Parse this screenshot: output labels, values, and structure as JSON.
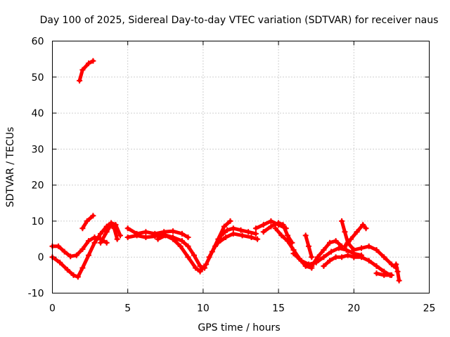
{
  "chart_data": {
    "type": "scatter",
    "title": "Day 100 of 2025, Sidereal Day-to-day VTEC variation (SDTVAR) for receiver naus",
    "xlabel": "GPS time / hours",
    "ylabel": "SDTVAR / TECUs",
    "xlim": [
      0,
      25
    ],
    "ylim": [
      -10,
      60
    ],
    "xticks": [
      0,
      5,
      10,
      15,
      20,
      25
    ],
    "yticks": [
      -10,
      0,
      10,
      20,
      30,
      40,
      50,
      60
    ],
    "grid": true,
    "legend": "none",
    "color": "#ff0000",
    "series": [
      {
        "name": "s1",
        "points": [
          [
            1.8,
            49
          ],
          [
            2.0,
            52
          ],
          [
            2.4,
            53.8
          ],
          [
            2.7,
            54.5
          ]
        ]
      },
      {
        "name": "s2",
        "points": [
          [
            0.0,
            3
          ],
          [
            0.4,
            3
          ],
          [
            0.8,
            1.5
          ],
          [
            1.2,
            0.2
          ],
          [
            1.6,
            0.5
          ],
          [
            2.0,
            2.2
          ],
          [
            2.4,
            4.5
          ],
          [
            2.8,
            5.5
          ],
          [
            3.2,
            5
          ],
          [
            3.6,
            4
          ]
        ]
      },
      {
        "name": "s3",
        "points": [
          [
            0.0,
            0
          ],
          [
            0.5,
            -1.5
          ],
          [
            1.0,
            -3.5
          ],
          [
            1.4,
            -5
          ],
          [
            1.7,
            -5.5
          ],
          [
            2.0,
            -3
          ],
          [
            2.4,
            0.5
          ],
          [
            2.8,
            4
          ],
          [
            3.2,
            6.5
          ],
          [
            3.6,
            8.5
          ],
          [
            3.9,
            9.5
          ],
          [
            4.2,
            9
          ],
          [
            4.5,
            6
          ]
        ]
      },
      {
        "name": "s4",
        "points": [
          [
            2.0,
            8
          ],
          [
            2.3,
            10
          ],
          [
            2.7,
            11.5
          ]
        ]
      },
      {
        "name": "s5",
        "points": [
          [
            3.2,
            4
          ],
          [
            3.6,
            7
          ],
          [
            3.9,
            9
          ],
          [
            4.1,
            8
          ],
          [
            4.3,
            5
          ]
        ]
      },
      {
        "name": "s6",
        "points": [
          [
            5.0,
            8
          ],
          [
            5.6,
            6.5
          ],
          [
            6.2,
            7
          ],
          [
            6.8,
            6.5
          ],
          [
            7.4,
            7
          ],
          [
            8.0,
            7.2
          ],
          [
            8.6,
            6.5
          ],
          [
            9.0,
            5.5
          ]
        ]
      },
      {
        "name": "s7",
        "points": [
          [
            5.0,
            5.5
          ],
          [
            5.6,
            6
          ],
          [
            6.2,
            5.5
          ],
          [
            6.8,
            5.8
          ],
          [
            7.4,
            6.2
          ],
          [
            8.0,
            5.5
          ],
          [
            8.6,
            4.5
          ],
          [
            9.0,
            3
          ],
          [
            9.4,
            0.5
          ],
          [
            9.8,
            -2.5
          ],
          [
            10.1,
            -3
          ]
        ]
      },
      {
        "name": "s8",
        "points": [
          [
            7.0,
            5
          ],
          [
            7.5,
            6
          ],
          [
            8.0,
            5
          ],
          [
            8.5,
            3
          ],
          [
            9.0,
            0
          ],
          [
            9.5,
            -3
          ],
          [
            9.8,
            -4
          ],
          [
            10.2,
            -2
          ],
          [
            10.6,
            1.5
          ],
          [
            11.0,
            5
          ],
          [
            11.4,
            8.5
          ],
          [
            11.8,
            10
          ]
        ]
      },
      {
        "name": "s9",
        "points": [
          [
            10.4,
            0
          ],
          [
            10.8,
            3
          ],
          [
            11.2,
            6
          ],
          [
            11.6,
            7.5
          ],
          [
            12.0,
            8
          ],
          [
            12.5,
            7.5
          ],
          [
            13.0,
            7
          ],
          [
            13.5,
            6.5
          ]
        ]
      },
      {
        "name": "s10",
        "points": [
          [
            11.0,
            4
          ],
          [
            11.5,
            5.5
          ],
          [
            12.0,
            6.5
          ],
          [
            12.6,
            6
          ],
          [
            13.2,
            5.5
          ],
          [
            13.6,
            5
          ]
        ]
      },
      {
        "name": "s11",
        "points": [
          [
            13.5,
            8
          ],
          [
            14.0,
            9
          ],
          [
            14.5,
            10
          ],
          [
            15.0,
            9
          ],
          [
            15.5,
            8
          ]
        ]
      },
      {
        "name": "s12",
        "points": [
          [
            14.0,
            7
          ],
          [
            14.5,
            8.5
          ],
          [
            15.0,
            9.5
          ],
          [
            15.3,
            9
          ],
          [
            15.6,
            6
          ],
          [
            15.9,
            4
          ]
        ]
      },
      {
        "name": "s13",
        "points": [
          [
            14.8,
            8
          ],
          [
            15.2,
            6
          ],
          [
            15.6,
            4.5
          ],
          [
            16.0,
            2
          ],
          [
            16.4,
            -0.5
          ],
          [
            16.8,
            -2.5
          ],
          [
            17.2,
            -3
          ]
        ]
      },
      {
        "name": "s14",
        "points": [
          [
            16.0,
            1
          ],
          [
            16.5,
            -1
          ],
          [
            17.0,
            -2
          ],
          [
            17.5,
            -1.5
          ],
          [
            18.0,
            0
          ],
          [
            18.5,
            1.5
          ],
          [
            19.0,
            2.5
          ],
          [
            19.5,
            2
          ],
          [
            20.0,
            1
          ],
          [
            20.5,
            0.5
          ]
        ]
      },
      {
        "name": "s15",
        "points": [
          [
            16.8,
            6
          ],
          [
            17.0,
            3
          ],
          [
            17.2,
            0
          ]
        ]
      },
      {
        "name": "s16",
        "points": [
          [
            17.2,
            -2.5
          ],
          [
            17.6,
            0
          ],
          [
            18.0,
            2
          ],
          [
            18.4,
            4
          ],
          [
            18.8,
            4.5
          ],
          [
            19.2,
            3
          ]
        ]
      },
      {
        "name": "s17",
        "points": [
          [
            18.0,
            -2.5
          ],
          [
            18.4,
            -1
          ],
          [
            18.8,
            0
          ],
          [
            19.2,
            0
          ],
          [
            19.6,
            0.5
          ],
          [
            20.0,
            0
          ]
        ]
      },
      {
        "name": "s18",
        "points": [
          [
            19.2,
            10
          ],
          [
            19.4,
            7
          ],
          [
            19.6,
            4
          ]
        ]
      },
      {
        "name": "s19",
        "points": [
          [
            19.4,
            3
          ],
          [
            19.8,
            5
          ],
          [
            20.2,
            7
          ],
          [
            20.6,
            9
          ],
          [
            20.8,
            8
          ]
        ]
      },
      {
        "name": "s20",
        "points": [
          [
            19.6,
            4
          ],
          [
            20.0,
            2
          ],
          [
            20.5,
            2.5
          ],
          [
            21.0,
            3
          ],
          [
            21.5,
            2
          ],
          [
            22.0,
            0
          ],
          [
            22.5,
            -2
          ],
          [
            22.8,
            -3
          ]
        ]
      },
      {
        "name": "s21",
        "points": [
          [
            20.0,
            0
          ],
          [
            20.5,
            0
          ],
          [
            21.0,
            -1
          ],
          [
            21.5,
            -2.5
          ],
          [
            22.0,
            -4
          ],
          [
            22.4,
            -5
          ]
        ]
      },
      {
        "name": "s22",
        "points": [
          [
            21.5,
            -4.5
          ],
          [
            22.0,
            -5
          ],
          [
            22.5,
            -5
          ]
        ]
      },
      {
        "name": "s23",
        "points": [
          [
            22.8,
            -2
          ],
          [
            22.9,
            -4
          ],
          [
            23.0,
            -6.5
          ]
        ]
      }
    ]
  }
}
